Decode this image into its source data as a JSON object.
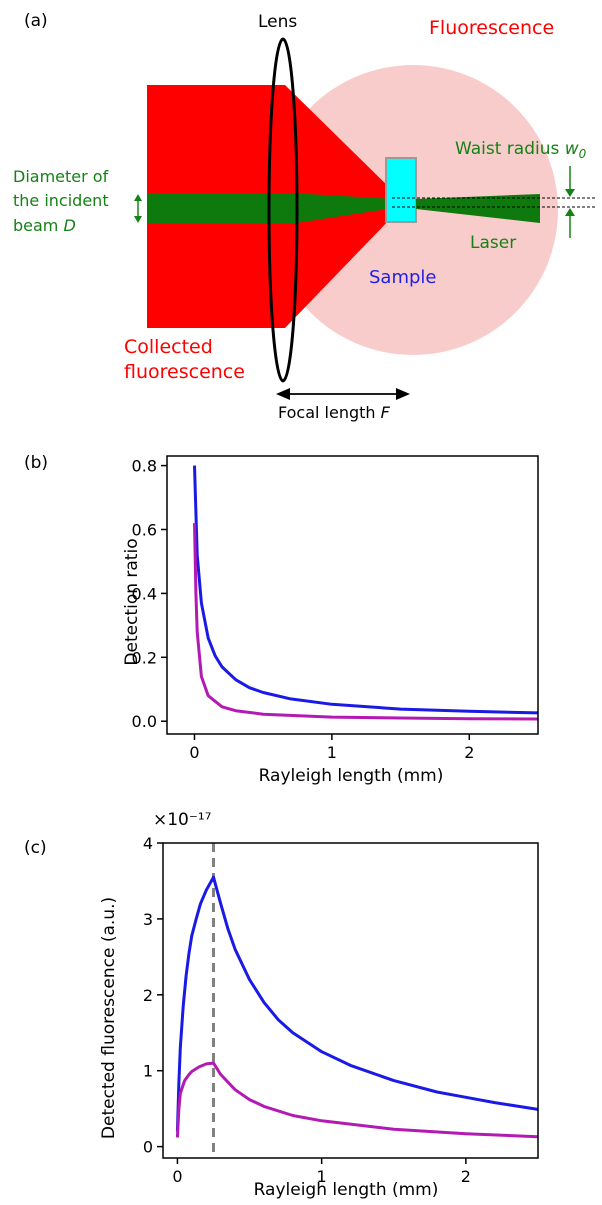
{
  "panel_a": {
    "label": "(a)",
    "lens": "Lens",
    "fluorescence": "Fluorescence",
    "waist_label": "Waist radius ",
    "waist_symbol": "w",
    "waist_sub": "0",
    "diameter_line1": "Diameter of",
    "diameter_line2": "the incident",
    "diameter_line3": "beam ",
    "diameter_symbol": "D",
    "laser": "Laser",
    "sample": "Sample",
    "collected_line1": "Collected",
    "collected_line2": "fluorescence",
    "focal_label": "Focal length ",
    "focal_symbol": "F",
    "colors": {
      "fluorescence": "#f9cccc",
      "collected": "#ff0000",
      "beam": "#0e7a0e",
      "sample": "#00ffff",
      "green_text": "#148214",
      "red_text": "#ff0000",
      "blue_text": "#1f1fe6"
    }
  },
  "chart_data": [
    {
      "type": "line",
      "panel_label": "(b)",
      "xlabel": "Rayleigh length (mm)",
      "ylabel": "Detection ratio",
      "xlim": [
        -0.2,
        2.5
      ],
      "ylim": [
        -0.04,
        0.83
      ],
      "xticks": [
        "0",
        "1",
        "2"
      ],
      "xtick_values": [
        0,
        1,
        2
      ],
      "yticks": [
        "0.0",
        "0.2",
        "0.4",
        "0.6",
        "0.8"
      ],
      "ytick_values": [
        0.0,
        0.2,
        0.4,
        0.6,
        0.8
      ],
      "series": [
        {
          "color": "#1a1ae6",
          "x": [
            0.0,
            0.02,
            0.05,
            0.1,
            0.15,
            0.2,
            0.3,
            0.4,
            0.5,
            0.7,
            1.0,
            1.5,
            2.0,
            2.5
          ],
          "y": [
            0.8,
            0.52,
            0.37,
            0.26,
            0.205,
            0.17,
            0.13,
            0.105,
            0.09,
            0.07,
            0.053,
            0.038,
            0.031,
            0.026
          ]
        },
        {
          "color": "#b31ab3",
          "x": [
            0.0,
            0.01,
            0.02,
            0.05,
            0.1,
            0.2,
            0.3,
            0.5,
            1.0,
            1.5,
            2.0,
            2.5
          ],
          "y": [
            0.62,
            0.4,
            0.28,
            0.14,
            0.08,
            0.045,
            0.033,
            0.022,
            0.013,
            0.01,
            0.008,
            0.007
          ]
        }
      ]
    },
    {
      "type": "line",
      "panel_label": "(c)",
      "multiplier": "×10⁻¹⁷",
      "xlabel": "Rayleigh length (mm)",
      "ylabel": "Detected fluorescence (a.u.)",
      "xlim": [
        -0.1,
        2.5
      ],
      "ylim": [
        -0.15,
        4.0
      ],
      "xticks": [
        "0",
        "1",
        "2"
      ],
      "xtick_values": [
        0,
        1,
        2
      ],
      "yticks": [
        "0",
        "1",
        "2",
        "3",
        "4"
      ],
      "ytick_values": [
        0,
        1,
        2,
        3,
        4
      ],
      "vline_x": 0.25,
      "series": [
        {
          "color": "#1a1ae6",
          "x": [
            0.0,
            0.01,
            0.02,
            0.04,
            0.06,
            0.08,
            0.1,
            0.13,
            0.16,
            0.2,
            0.25,
            0.3,
            0.35,
            0.4,
            0.5,
            0.6,
            0.7,
            0.8,
            1.0,
            1.2,
            1.5,
            1.8,
            2.0,
            2.2,
            2.5
          ],
          "y": [
            0.2,
            0.85,
            1.3,
            1.85,
            2.25,
            2.55,
            2.78,
            3.0,
            3.2,
            3.38,
            3.55,
            3.2,
            2.87,
            2.6,
            2.2,
            1.9,
            1.67,
            1.5,
            1.25,
            1.07,
            0.87,
            0.72,
            0.65,
            0.58,
            0.49
          ]
        },
        {
          "color": "#b31ab3",
          "x": [
            0.0,
            0.01,
            0.02,
            0.05,
            0.08,
            0.1,
            0.15,
            0.2,
            0.25,
            0.3,
            0.4,
            0.5,
            0.6,
            0.8,
            1.0,
            1.5,
            2.0,
            2.5
          ],
          "y": [
            0.12,
            0.5,
            0.7,
            0.87,
            0.95,
            0.99,
            1.05,
            1.09,
            1.1,
            0.95,
            0.75,
            0.62,
            0.53,
            0.41,
            0.34,
            0.23,
            0.17,
            0.13
          ]
        }
      ]
    }
  ]
}
